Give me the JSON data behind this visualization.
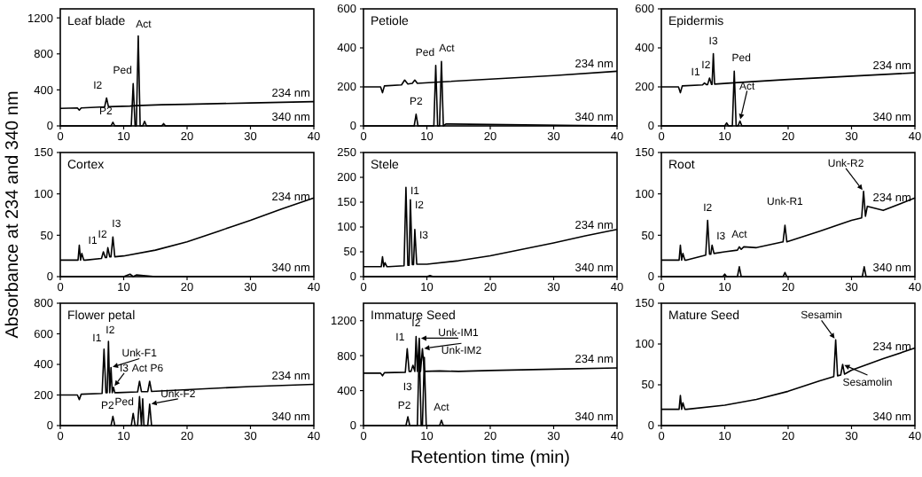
{
  "chart_data": [
    {
      "type": "line",
      "title": "Leaf blade",
      "xlim": [
        0,
        40
      ],
      "ylim": [
        0,
        1300
      ],
      "xticks": [
        0,
        10,
        20,
        30,
        40
      ],
      "yticks": [
        0,
        400,
        800,
        1200
      ],
      "series": [
        {
          "name": "234 nm",
          "color": "#000000",
          "x": [
            0,
            2.7,
            3,
            3.3,
            7,
            7.3,
            7.6,
            11,
            12,
            16,
            20,
            30,
            40
          ],
          "values": [
            195,
            200,
            175,
            200,
            212,
            310,
            213,
            220,
            225,
            235,
            240,
            255,
            270
          ]
        },
        {
          "name": "340 nm",
          "color": "#000000",
          "x": [
            0,
            8,
            8.3,
            8.6,
            11.2,
            11.5,
            11.8,
            12,
            12.3,
            12.6,
            13,
            13.3,
            13.6,
            16,
            16.3,
            16.6,
            20,
            40
          ],
          "values": [
            0,
            0,
            40,
            0,
            0,
            470,
            0,
            0,
            1000,
            0,
            0,
            50,
            0,
            0,
            25,
            0,
            0,
            0
          ]
        }
      ],
      "annotations": [
        {
          "text": "I2",
          "x": 7.3,
          "y": 310
        },
        {
          "text": "Ped",
          "x": 11.5,
          "y": 470
        },
        {
          "text": "Act",
          "x": 12.3,
          "y": 1000
        },
        {
          "text": "P2",
          "x": 8.3,
          "y": 40
        }
      ]
    },
    {
      "type": "line",
      "title": "Petiole",
      "xlim": [
        0,
        40
      ],
      "ylim": [
        0,
        600
      ],
      "xticks": [
        0,
        10,
        20,
        30,
        40
      ],
      "yticks": [
        0,
        200,
        400,
        600
      ],
      "series": [
        {
          "name": "234 nm",
          "color": "#000000",
          "x": [
            0,
            2.7,
            3,
            3.3,
            6,
            6.5,
            7,
            7.7,
            8.1,
            8.5,
            12,
            20,
            30,
            40
          ],
          "values": [
            200,
            200,
            170,
            205,
            210,
            235,
            215,
            218,
            235,
            218,
            225,
            240,
            258,
            280
          ]
        },
        {
          "name": "340 nm",
          "color": "#000000",
          "x": [
            0,
            8,
            8.3,
            8.6,
            11.1,
            11.4,
            11.7,
            12,
            12.3,
            12.6,
            13,
            40
          ],
          "values": [
            0,
            0,
            60,
            0,
            0,
            310,
            0,
            0,
            330,
            0,
            10,
            0
          ]
        }
      ],
      "annotations": [
        {
          "text": "Ped",
          "x": 11.4,
          "y": 310
        },
        {
          "text": "Act",
          "x": 12.3,
          "y": 330
        },
        {
          "text": "P2",
          "x": 8.3,
          "y": 60
        }
      ]
    },
    {
      "type": "line",
      "title": "Epidermis",
      "xlim": [
        0,
        40
      ],
      "ylim": [
        0,
        600
      ],
      "xticks": [
        0,
        10,
        20,
        30,
        40
      ],
      "yticks": [
        0,
        200,
        400,
        600
      ],
      "series": [
        {
          "name": "234 nm",
          "color": "#000000",
          "x": [
            0,
            2.7,
            3,
            3.3,
            6.5,
            6.8,
            7.1,
            7.3,
            7.6,
            7.9,
            8,
            8.2,
            8.4,
            12,
            20,
            30,
            40
          ],
          "values": [
            200,
            200,
            170,
            205,
            210,
            220,
            212,
            212,
            245,
            213,
            213,
            370,
            214,
            222,
            238,
            255,
            272
          ]
        },
        {
          "name": "340 nm",
          "color": "#000000",
          "x": [
            0,
            10,
            10.3,
            10.6,
            11.2,
            11.5,
            11.8,
            12.1,
            12.4,
            12.7,
            15,
            40
          ],
          "values": [
            0,
            0,
            15,
            0,
            0,
            280,
            0,
            0,
            25,
            0,
            0,
            0
          ]
        }
      ],
      "annotations": [
        {
          "text": "I1",
          "x": 6.8,
          "y": 220
        },
        {
          "text": "I2",
          "x": 7.6,
          "y": 245
        },
        {
          "text": "I3",
          "x": 8.2,
          "y": 370
        },
        {
          "text": "Ped",
          "x": 11.5,
          "y": 280
        },
        {
          "text": "Act",
          "x": 12.4,
          "y": 25
        }
      ]
    },
    {
      "type": "line",
      "title": "Cortex",
      "ylabel": "Absorbance at 234 and 340 nm",
      "xlim": [
        0,
        40
      ],
      "ylim": [
        0,
        150
      ],
      "xticks": [
        0,
        10,
        20,
        30,
        40
      ],
      "yticks": [
        0,
        50,
        100,
        150
      ],
      "series": [
        {
          "name": "234 nm",
          "color": "#000000",
          "x": [
            0,
            2.8,
            3,
            3.2,
            3.4,
            3.7,
            4,
            6.5,
            6.8,
            7.1,
            7.3,
            7.5,
            7.8,
            8,
            8.3,
            8.6,
            10,
            15,
            20,
            25,
            30,
            35,
            40
          ],
          "values": [
            20,
            20,
            38,
            20,
            28,
            20,
            20,
            22,
            30,
            23,
            23,
            35,
            24,
            24,
            48,
            24,
            25,
            32,
            42,
            55,
            68,
            82,
            95
          ]
        },
        {
          "name": "340 nm",
          "color": "#000000",
          "x": [
            0,
            10,
            11,
            11.5,
            12,
            15,
            40
          ],
          "values": [
            0,
            0,
            3,
            0,
            2,
            0,
            0
          ]
        }
      ],
      "annotations": [
        {
          "text": "I1",
          "x": 6.8,
          "y": 30
        },
        {
          "text": "I2",
          "x": 7.5,
          "y": 35
        },
        {
          "text": "I3",
          "x": 8.3,
          "y": 48
        }
      ]
    },
    {
      "type": "line",
      "title": "Stele",
      "xlim": [
        0,
        40
      ],
      "ylim": [
        0,
        250
      ],
      "xticks": [
        0,
        10,
        20,
        30,
        40
      ],
      "yticks": [
        0,
        50,
        100,
        150,
        200,
        250
      ],
      "series": [
        {
          "name": "234 nm",
          "color": "#000000",
          "x": [
            0,
            2.8,
            3,
            3.2,
            3.4,
            3.7,
            4,
            6.4,
            6.7,
            7,
            7.2,
            7.4,
            7.7,
            7.9,
            8.1,
            8.4,
            10,
            15,
            20,
            25,
            30,
            35,
            40
          ],
          "values": [
            20,
            20,
            40,
            20,
            28,
            20,
            20,
            22,
            180,
            23,
            23,
            155,
            24,
            24,
            95,
            25,
            25,
            32,
            42,
            55,
            68,
            82,
            95
          ]
        },
        {
          "name": "340 nm",
          "color": "#000000",
          "x": [
            0,
            10,
            10.5,
            11,
            40
          ],
          "values": [
            0,
            0,
            2,
            0,
            0
          ]
        }
      ],
      "annotations": [
        {
          "text": "I1",
          "x": 6.7,
          "y": 180
        },
        {
          "text": "I2",
          "x": 7.4,
          "y": 155
        },
        {
          "text": "I3",
          "x": 8.1,
          "y": 95
        }
      ]
    },
    {
      "type": "line",
      "title": "Root",
      "xlim": [
        0,
        40
      ],
      "ylim": [
        0,
        150
      ],
      "xticks": [
        0,
        10,
        20,
        30,
        40
      ],
      "yticks": [
        0,
        50,
        100,
        150
      ],
      "series": [
        {
          "name": "234 nm",
          "color": "#000000",
          "x": [
            0,
            2.8,
            3,
            3.2,
            3.4,
            3.7,
            4,
            7,
            7.3,
            7.6,
            7.8,
            8,
            8.3,
            10,
            12,
            12.3,
            12.6,
            13,
            15,
            19.2,
            19.5,
            19.8,
            25,
            30,
            31.6,
            31.9,
            32.2,
            32.5,
            35,
            40
          ],
          "values": [
            20,
            20,
            38,
            20,
            28,
            20,
            20,
            26,
            68,
            27,
            27,
            38,
            28,
            30,
            32,
            36,
            33,
            36,
            35,
            42,
            62,
            42,
            55,
            68,
            71,
            103,
            73,
            85,
            80,
            95
          ]
        },
        {
          "name": "340 nm",
          "color": "#000000",
          "x": [
            0,
            9.7,
            10,
            10.3,
            12,
            12.3,
            12.6,
            19.2,
            19.5,
            19.8,
            31.7,
            32,
            32.3,
            40
          ],
          "values": [
            0,
            0,
            3,
            0,
            0,
            12,
            0,
            0,
            5,
            0,
            0,
            12,
            0,
            0
          ]
        }
      ],
      "annotations": [
        {
          "text": "I2",
          "x": 7.3,
          "y": 68
        },
        {
          "text": "I3",
          "x": 8,
          "y": 38
        },
        {
          "text": "Act",
          "x": 12.3,
          "y": 12
        },
        {
          "text": "Unk-R1",
          "x": 19.5,
          "y": 62
        },
        {
          "text": "Unk-R2",
          "x": 31.9,
          "y": 103
        }
      ]
    },
    {
      "type": "line",
      "title": "Flower petal",
      "xlim": [
        0,
        40
      ],
      "ylim": [
        0,
        800
      ],
      "xticks": [
        0,
        10,
        20,
        30,
        40
      ],
      "yticks": [
        0,
        200,
        400,
        600,
        800
      ],
      "series": [
        {
          "name": "234 nm",
          "color": "#000000",
          "x": [
            0,
            2.7,
            3,
            3.3,
            6.6,
            6.9,
            7.2,
            7.4,
            7.6,
            7.8,
            8,
            8.2,
            8.4,
            8.6,
            9,
            12.2,
            12.5,
            12.8,
            13.8,
            14.1,
            14.4,
            20,
            30,
            40
          ],
          "values": [
            200,
            200,
            170,
            205,
            210,
            500,
            215,
            215,
            550,
            215,
            380,
            215,
            250,
            215,
            215,
            220,
            290,
            222,
            222,
            290,
            223,
            235,
            255,
            270
          ]
        },
        {
          "name": "340 nm",
          "color": "#000000",
          "x": [
            0,
            8,
            8.3,
            8.6,
            11.2,
            11.5,
            11.8,
            12.2,
            12.5,
            12.8,
            13,
            13.2,
            13.8,
            14.1,
            14.4,
            40
          ],
          "values": [
            0,
            0,
            60,
            0,
            0,
            80,
            0,
            0,
            190,
            0,
            175,
            0,
            0,
            140,
            0,
            0
          ]
        }
      ],
      "annotations": [
        {
          "text": "I1",
          "x": 6.9,
          "y": 500
        },
        {
          "text": "I2",
          "x": 7.6,
          "y": 550
        },
        {
          "text": "Unk-F1",
          "x": 8,
          "y": 380
        },
        {
          "text": "I3",
          "x": 8.4,
          "y": 250
        },
        {
          "text": "Act",
          "x": 12.5,
          "y": 290
        },
        {
          "text": "P6",
          "x": 14.1,
          "y": 290
        },
        {
          "text": "P2",
          "x": 8.3,
          "y": 60
        },
        {
          "text": "Ped",
          "x": 11.5,
          "y": 80
        },
        {
          "text": "Unk-F2",
          "x": 14.1,
          "y": 140
        }
      ]
    },
    {
      "type": "line",
      "title": "Immature Seed",
      "xlabel": "Retention time (min)",
      "xlim": [
        0,
        40
      ],
      "ylim": [
        0,
        1400
      ],
      "xticks": [
        0,
        10,
        20,
        30,
        40
      ],
      "yticks": [
        0,
        400,
        800,
        1200
      ],
      "series": [
        {
          "name": "234 nm",
          "color": "#000000",
          "x": [
            0,
            2.7,
            3,
            3.3,
            6.6,
            6.9,
            7.2,
            7.5,
            7.8,
            8.1,
            8.3,
            8.5,
            8.8,
            9,
            9.3,
            9.6,
            12,
            15,
            20,
            30,
            40
          ],
          "values": [
            600,
            600,
            570,
            605,
            610,
            880,
            620,
            620,
            690,
            620,
            1020,
            620,
            1000,
            620,
            880,
            620,
            625,
            620,
            630,
            645,
            660
          ]
        },
        {
          "name": "340 nm",
          "color": "#000000",
          "x": [
            0,
            6.7,
            7,
            7.3,
            8.5,
            8.8,
            9.1,
            9.3,
            9.6,
            9.9,
            12,
            12.3,
            12.6,
            40
          ],
          "values": [
            0,
            0,
            100,
            0,
            0,
            900,
            0,
            0,
            780,
            0,
            0,
            60,
            0,
            0
          ]
        }
      ],
      "annotations": [
        {
          "text": "I1",
          "x": 6.9,
          "y": 880
        },
        {
          "text": "I2",
          "x": 8.3,
          "y": 1020
        },
        {
          "text": "Unk-IM1",
          "x": 8.8,
          "y": 1000
        },
        {
          "text": "Unk-IM2",
          "x": 9.3,
          "y": 880
        },
        {
          "text": "I3",
          "x": 7.8,
          "y": 690
        },
        {
          "text": "P2",
          "x": 7,
          "y": 100
        },
        {
          "text": "Act",
          "x": 12.3,
          "y": 60
        }
      ]
    },
    {
      "type": "line",
      "title": "Mature Seed",
      "xlim": [
        0,
        40
      ],
      "ylim": [
        0,
        150
      ],
      "xticks": [
        0,
        10,
        20,
        30,
        40
      ],
      "yticks": [
        0,
        50,
        100,
        150
      ],
      "series": [
        {
          "name": "234 nm",
          "color": "#000000",
          "x": [
            0,
            2.8,
            3,
            3.2,
            3.4,
            3.7,
            4,
            10,
            15,
            20,
            25,
            27.2,
            27.5,
            27.8,
            28.3,
            28.6,
            28.9,
            30,
            35,
            40
          ],
          "values": [
            20,
            20,
            37,
            20,
            28,
            20,
            20,
            25,
            32,
            42,
            55,
            60,
            105,
            61,
            62,
            75,
            63,
            68,
            82,
            95
          ]
        },
        {
          "name": "340 nm",
          "color": "#000000",
          "x": [
            0,
            40
          ],
          "values": [
            0,
            0
          ]
        }
      ],
      "annotations": [
        {
          "text": "Sesamin",
          "x": 27.5,
          "y": 105
        },
        {
          "text": "Sesamolin",
          "x": 28.6,
          "y": 75
        }
      ]
    }
  ]
}
